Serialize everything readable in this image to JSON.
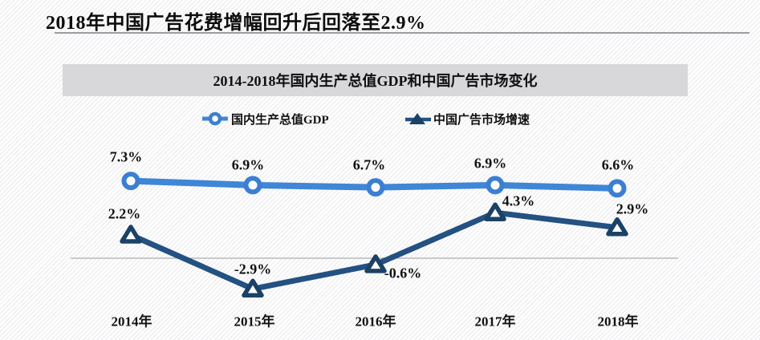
{
  "page_title": "2018年中国广告花费增幅回升后回落至2.9%",
  "chart_data": {
    "type": "line",
    "title": "2014-2018年国内生产总值GDP和中国广告市场变化",
    "categories": [
      "2014年",
      "2015年",
      "2016年",
      "2017年",
      "2018年"
    ],
    "series": [
      {
        "name": "国内生产总值GDP",
        "values": [
          7.3,
          6.9,
          6.7,
          6.9,
          6.6
        ],
        "labels": [
          "7.3%",
          "6.9%",
          "6.7%",
          "6.9%",
          "6.6%"
        ],
        "marker": "circle",
        "color": "#3b7fd2",
        "line_color": "#3f86d6"
      },
      {
        "name": "中国广告市场增速",
        "values": [
          2.2,
          -2.9,
          -0.6,
          4.3,
          2.9
        ],
        "labels": [
          "2.2%",
          "-2.9%",
          "-0.6%",
          "4.3%",
          "2.9%"
        ],
        "marker": "triangle",
        "color": "#1b4266",
        "line_color": "#235181"
      }
    ],
    "unit": "%",
    "baseline_value": 0,
    "grid": false,
    "legend_position": "top-center",
    "axis_line_color": "#9b9b9b",
    "label_color": "#121212"
  }
}
